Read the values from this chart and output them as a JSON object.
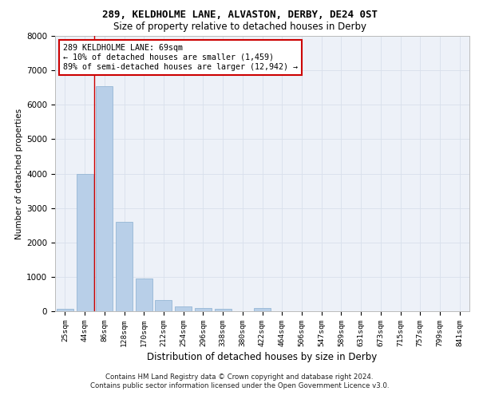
{
  "title1": "289, KELDHOLME LANE, ALVASTON, DERBY, DE24 0ST",
  "title2": "Size of property relative to detached houses in Derby",
  "xlabel": "Distribution of detached houses by size in Derby",
  "ylabel": "Number of detached properties",
  "footer1": "Contains HM Land Registry data © Crown copyright and database right 2024.",
  "footer2": "Contains public sector information licensed under the Open Government Licence v3.0.",
  "bar_labels": [
    "25sqm",
    "44sqm",
    "86sqm",
    "128sqm",
    "170sqm",
    "212sqm",
    "254sqm",
    "296sqm",
    "338sqm",
    "380sqm",
    "422sqm",
    "464sqm",
    "506sqm",
    "547sqm",
    "589sqm",
    "631sqm",
    "673sqm",
    "715sqm",
    "757sqm",
    "799sqm",
    "841sqm"
  ],
  "bar_values": [
    70,
    4000,
    6550,
    2600,
    950,
    320,
    130,
    95,
    75,
    0,
    85,
    0,
    0,
    0,
    0,
    0,
    0,
    0,
    0,
    0,
    0
  ],
  "bar_color": "#b8cfe8",
  "bar_edge_color": "#8aafd0",
  "grid_color": "#d8e0ec",
  "background_color": "#edf1f8",
  "annotation_text": "289 KELDHOLME LANE: 69sqm\n← 10% of detached houses are smaller (1,459)\n89% of semi-detached houses are larger (12,942) →",
  "annotation_box_color": "#ffffff",
  "annotation_box_edge": "#cc0000",
  "vline_x": 1.5,
  "vline_color": "#cc0000",
  "ylim": [
    0,
    8000
  ],
  "yticks": [
    0,
    1000,
    2000,
    3000,
    4000,
    5000,
    6000,
    7000,
    8000
  ]
}
